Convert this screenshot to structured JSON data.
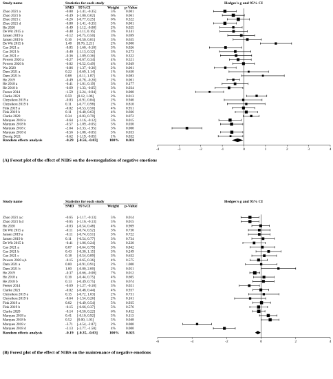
{
  "chart_data": [
    {
      "type": "forest",
      "caption": "(A) Forest plot of the effect of NIBS on the downregulation of negative emotions",
      "headers": {
        "study": "Study name",
        "stats": "Statistics for each study",
        "smd": "SMD",
        "ci": "95%CI",
        "weight": "Weight",
        "p": "p-Value",
        "axis_title": "Hedges's g and 95% CI"
      },
      "xlim": [
        -4,
        4
      ],
      "ticks": [
        "-4",
        "-3",
        "-2",
        "-1",
        "0",
        "1",
        "2",
        "3",
        "4"
      ],
      "rows": [
        {
          "study": "Zhao 2021 a",
          "smd": "-0.88",
          "ci": "[-1.41, -0.35]",
          "lo": -1.41,
          "hi": -0.35,
          "weight": "5%",
          "p": "0.001"
        },
        {
          "study": "Zhao 2021 b",
          "smd": "-0.49",
          "ci": "[-1.00, 0.02]",
          "lo": -1.0,
          "hi": 0.02,
          "weight": "6%",
          "p": "0.061"
        },
        {
          "study": "Zhao 2021 c",
          "smd": "-0.26",
          "ci": "[-0.77, 0.25]",
          "lo": -0.77,
          "hi": 0.25,
          "weight": "6%",
          "p": "0.322"
        },
        {
          "study": "Zhao 2021 d",
          "smd": "-0.88",
          "ci": "[-1.41, -0.35]",
          "lo": -1.41,
          "hi": -0.35,
          "weight": "5%",
          "p": "0.001"
        },
        {
          "study": "He 2020",
          "smd": "-0.49",
          "ci": "[-1.12, -0.08]",
          "lo": -1.12,
          "hi": -0.08,
          "weight": "2%",
          "p": "0.025"
        },
        {
          "study": "De Wit 2015 a",
          "smd": "-0.48",
          "ci": "[-1.11, 0.16]",
          "lo": -1.11,
          "hi": 0.16,
          "weight": "3%",
          "p": "0.141"
        },
        {
          "study": "Jansen 2019 a",
          "smd": "-0.12",
          "ci": "[-0.75, 0.50]",
          "lo": -0.75,
          "hi": 0.5,
          "weight": "3%",
          "p": "0.699"
        },
        {
          "study": "Jansen 2019 b",
          "smd": "0.16",
          "ci": "[-0.50, 0.81]",
          "lo": -0.5,
          "hi": 0.81,
          "weight": "3%",
          "p": "0.635"
        },
        {
          "study": "De Wit 2015 b",
          "smd": "1.48",
          "ci": "[0.76, 2.21]",
          "lo": 0.76,
          "hi": 2.21,
          "weight": "2%",
          "p": "0.000"
        },
        {
          "study": "Cao 2021 a",
          "smd": "-0.85",
          "ci": "[-1.60, -0.10]",
          "lo": -1.6,
          "hi": -0.1,
          "weight": "3%",
          "p": "0.026"
        },
        {
          "study": "Cao 2021 b",
          "smd": "-0.40",
          "ci": "[-1.13, 0.32]",
          "lo": -1.13,
          "hi": 0.32,
          "weight": "3%",
          "p": "0.273"
        },
        {
          "study": "Cao 2021 c",
          "smd": "-0.36",
          "ci": "[-1.09, 0.36]",
          "lo": -1.09,
          "hi": 0.36,
          "weight": "3%",
          "p": "0.322"
        },
        {
          "study": "Powers 2020 a",
          "smd": "-0.27",
          "ci": "[-0.67, 0.34]",
          "lo": -0.67,
          "hi": 0.34,
          "weight": "4%",
          "p": "0.521"
        },
        {
          "study": "Powers 2020 b",
          "smd": "-0.02",
          "ci": "[-0.52, 0.49]",
          "lo": -0.52,
          "hi": 0.49,
          "weight": "4%",
          "p": "0.949"
        },
        {
          "study": "Wu 2020",
          "smd": "-0.86",
          "ci": "[-1.37, -0.36]",
          "lo": -1.37,
          "hi": -0.36,
          "weight": "2%",
          "p": "0.001"
        },
        {
          "study": "Dam 2021 a",
          "smd": "0.22",
          "ci": "[-0.69, 1.14]",
          "lo": -0.69,
          "hi": 1.14,
          "weight": "1%",
          "p": "0.630"
        },
        {
          "study": "Dam 2021 b",
          "smd": "0.88",
          "ci": "[-0.11, 1.87]",
          "lo": -0.11,
          "hi": 1.87,
          "weight": "1%",
          "p": "0.083"
        },
        {
          "study": "He 2019",
          "smd": "-0.49",
          "ci": "[-0.78, -0.20]",
          "lo": -0.78,
          "hi": -0.2,
          "weight": "2%",
          "p": "0.001"
        },
        {
          "study": "He 2018 a",
          "smd": "-0.41",
          "ci": "[-1.01, 0.19]",
          "lo": -1.01,
          "hi": 0.19,
          "weight": "3%",
          "p": "0.177"
        },
        {
          "study": "He 2018 b",
          "smd": "-0.69",
          "ci": "[-1.33, -0.05]",
          "lo": -1.33,
          "hi": -0.05,
          "weight": "3%",
          "p": "0.034"
        },
        {
          "study": "Feeser 2014",
          "smd": "-1.59",
          "ci": "[-2.24, -0.94]",
          "lo": -2.24,
          "hi": -0.94,
          "weight": "1%",
          "p": "0.000"
        },
        {
          "study": "Clarke 2021",
          "smd": "0.59",
          "ci": "[0.12, 1.06]",
          "lo": 0.12,
          "hi": 1.06,
          "weight": "2%",
          "p": "0.013"
        },
        {
          "study": "Chrysikou 2019 a",
          "smd": "-0.03",
          "ci": "[-0.91, 0.84]",
          "lo": -0.91,
          "hi": 0.84,
          "weight": "2%",
          "p": "0.940"
        },
        {
          "study": "Chrysikou 2019 b",
          "smd": "0.11",
          "ci": "[-0.77, 0.98]",
          "lo": -0.77,
          "hi": 0.98,
          "weight": "2%",
          "p": "0.810"
        },
        {
          "study": "Fink 2019 a",
          "smd": "-0.02",
          "ci": "[-0.53, 0.50]",
          "lo": -0.53,
          "hi": 0.5,
          "weight": "4%",
          "p": "0.951"
        },
        {
          "study": "Fink 2019 b",
          "smd": "0.11",
          "ci": "[-0.40, 0.63]",
          "lo": -0.4,
          "hi": 0.63,
          "weight": "4%",
          "p": "0.666"
        },
        {
          "study": "Clarke 2020",
          "smd": "0.34",
          "ci": "[-0.03, 0.70]",
          "lo": -0.03,
          "hi": 0.7,
          "weight": "2%",
          "p": "0.072"
        },
        {
          "study": "Marques 2018 a",
          "smd": "-0.64",
          "ci": "[-1.16, -0.12]",
          "lo": -1.16,
          "hi": -0.12,
          "weight": "5%",
          "p": "0.015"
        },
        {
          "study": "Marques 2018 b",
          "smd": "-0.57",
          "ci": "[-1.09, -0.05]",
          "lo": -1.09,
          "hi": -0.05,
          "weight": "5%",
          "p": "0.030"
        },
        {
          "study": "Marques 2018 c",
          "smd": "-2.64",
          "ci": "[-3.33, -1.95]",
          "lo": -3.33,
          "hi": -1.95,
          "weight": "3%",
          "p": "0.000"
        },
        {
          "study": "Marques 2018 d",
          "smd": "-0.56",
          "ci": "[-1.08, -0.05]",
          "lo": -1.08,
          "hi": -0.05,
          "weight": "5%",
          "p": "0.033"
        },
        {
          "study": "Doerig 2021",
          "smd": "-0.62",
          "ci": "[-1.19, -0.05]",
          "lo": -1.19,
          "hi": -0.05,
          "weight": "1%",
          "p": "0.032"
        }
      ],
      "summary": {
        "study": "Random effects analysis",
        "smd": "-0.29",
        "ci": "[-0.56, -0.03]",
        "lo": -0.56,
        "hi": -0.03,
        "weight": "100%",
        "p": "0.031"
      }
    },
    {
      "type": "forest",
      "caption": "(B) Forest plot of the effect of NIBS on the maintenance of negative emotions",
      "headers": {
        "study": "Study name",
        "stats": "Statistics for each study",
        "smd": "SMD",
        "ci": "95%CI",
        "weight": "Weight",
        "p": "p-Value",
        "axis_title": "Hedges's g and 95% CI"
      },
      "xlim": [
        -6,
        4
      ],
      "ticks": [
        "-6",
        "-4",
        "-2",
        "0",
        "2",
        "4"
      ],
      "rows": [
        {
          "study": "Zhao 2021 a,c",
          "smd": "-0.65",
          "ci": "[-1.17, -0.13]",
          "lo": -1.17,
          "hi": -0.13,
          "weight": "5%",
          "p": "0.014"
        },
        {
          "study": "Zhao 2021 b,d",
          "smd": "-0.65",
          "ci": "[-1.16, -0.13]",
          "lo": -1.16,
          "hi": -0.13,
          "weight": "5%",
          "p": "0.015"
        },
        {
          "study": "He 2020",
          "smd": "-0.03",
          "ci": "[-0.54, 0.48]",
          "lo": -0.54,
          "hi": 0.48,
          "weight": "4%",
          "p": "0.909"
        },
        {
          "study": "De Wit 2015 a",
          "smd": "-0.11",
          "ci": "[-0.74, 0.52]",
          "lo": -0.74,
          "hi": 0.52,
          "weight": "3%",
          "p": "0.730"
        },
        {
          "study": "Jansen 2019 a",
          "smd": "-0.11",
          "ci": "[-0.74, 0.51]",
          "lo": -0.74,
          "hi": 0.51,
          "weight": "3%",
          "p": "0.722"
        },
        {
          "study": "Jansen 2019 b",
          "smd": "0.11",
          "ci": "[-0.54, 0.77]",
          "lo": -0.54,
          "hi": 0.77,
          "weight": "3%",
          "p": "0.734"
        },
        {
          "study": "De Wit 2015 b",
          "smd": "-0.41",
          "ci": "[-1.06, 0.24]",
          "lo": -1.06,
          "hi": 0.24,
          "weight": "3%",
          "p": "0.220"
        },
        {
          "study": "Cao 2021 a",
          "smd": "0.07",
          "ci": "[-0.64, 0.79]",
          "lo": -0.64,
          "hi": 0.79,
          "weight": "3%",
          "p": "0.842"
        },
        {
          "study": "Cao 2021 b",
          "smd": "0.43",
          "ci": "[-0.30, 1.15]",
          "lo": -0.3,
          "hi": 1.15,
          "weight": "3%",
          "p": "0.249"
        },
        {
          "study": "Cao 2021 c",
          "smd": "0.18",
          "ci": "[-0.54, 0.89]",
          "lo": -0.54,
          "hi": 0.89,
          "weight": "3%",
          "p": "0.632"
        },
        {
          "study": "Powers 2020 a,b",
          "smd": "-0.15",
          "ci": "[-0.65, 0.36]",
          "lo": -0.65,
          "hi": 0.36,
          "weight": "4%",
          "p": "0.575"
        },
        {
          "study": "Dam 2021 a",
          "smd": "0.00",
          "ci": "[-0.91, 0.91]",
          "lo": -0.91,
          "hi": 0.91,
          "weight": "2%",
          "p": "1.000"
        },
        {
          "study": "Dam 2021 b",
          "smd": "1.00",
          "ci": "[-0.00, 2.00]",
          "lo": 0.0,
          "hi": 2.0,
          "weight": "2%",
          "p": "0.051"
        },
        {
          "study": "He 2019",
          "smd": "-0.37",
          "ci": "[-0.66, -0.08]",
          "lo": -0.66,
          "hi": -0.08,
          "weight": "7%",
          "p": "0.012"
        },
        {
          "study": "He 2018 a",
          "smd": "0.16",
          "ci": "[-0.44, 0.75]",
          "lo": -0.44,
          "hi": 0.75,
          "weight": "4%",
          "p": "0.605"
        },
        {
          "study": "He 2018 b",
          "smd": "0.13",
          "ci": "[-0.49, 0.75]",
          "lo": -0.49,
          "hi": 0.75,
          "weight": "4%",
          "p": "0.674"
        },
        {
          "study": "Feeser 2014",
          "smd": "-0.69",
          "ci": "[-1.27, -0.10]",
          "lo": -1.27,
          "hi": -0.1,
          "weight": "3%",
          "p": "0.021"
        },
        {
          "study": "Clarke 2021",
          "smd": "-0.02",
          "ci": "[-0.48, 0.44]",
          "lo": -0.48,
          "hi": 0.44,
          "weight": "4%",
          "p": "0.937"
        },
        {
          "study": "Chrysikou 2019 a",
          "smd": "0.15",
          "ci": "[-0.72, 1.03]",
          "lo": -0.72,
          "hi": 1.03,
          "weight": "2%",
          "p": "0.731"
        },
        {
          "study": "Chrysikou 2019 b",
          "smd": "-0.64",
          "ci": "[-1.54, 0.26]",
          "lo": -1.54,
          "hi": 0.26,
          "weight": "2%",
          "p": "0.161"
        },
        {
          "study": "Fink 2019 a",
          "smd": "0.02",
          "ci": "[-0.49, 0.54]",
          "lo": -0.49,
          "hi": 0.54,
          "weight": "5%",
          "p": "0.935"
        },
        {
          "study": "Fink 2019 b",
          "smd": "-0.15",
          "ci": "[-0.66, 0.37]",
          "lo": -0.66,
          "hi": 0.37,
          "weight": "5%",
          "p": "0.576"
        },
        {
          "study": "Clarke 2020",
          "smd": "-0.14",
          "ci": "[-0.50, 0.22]",
          "lo": -0.5,
          "hi": 0.22,
          "weight": "6%",
          "p": "0.452"
        },
        {
          "study": "Marques 2018 a",
          "smd": "0.41",
          "ci": "[-0.10, 0.92]",
          "lo": -0.1,
          "hi": 0.92,
          "weight": "5%",
          "p": "0.113"
        },
        {
          "study": "Marques 2018 b",
          "smd": "0.52",
          "ci": "[0.00, 1.03]",
          "lo": 0.0,
          "hi": 1.03,
          "weight": "5%",
          "p": "0.048"
        },
        {
          "study": "Marques 2018 c",
          "smd": "-3.71",
          "ci": "[-4.54, -2.87]",
          "lo": -4.54,
          "hi": -2.87,
          "weight": "2%",
          "p": "0.000"
        },
        {
          "study": "Marques 2018 d",
          "smd": "-2.13",
          "ci": "[-2.77, -1.50]",
          "lo": -2.77,
          "hi": -1.5,
          "weight": "4%",
          "p": "0.000"
        }
      ],
      "summary": {
        "study": "Random effects analysis",
        "smd": "-0.19",
        "ci": "[-0.35, -0.03]",
        "lo": -0.35,
        "hi": -0.03,
        "weight": "100%",
        "p": "0.023"
      }
    }
  ]
}
